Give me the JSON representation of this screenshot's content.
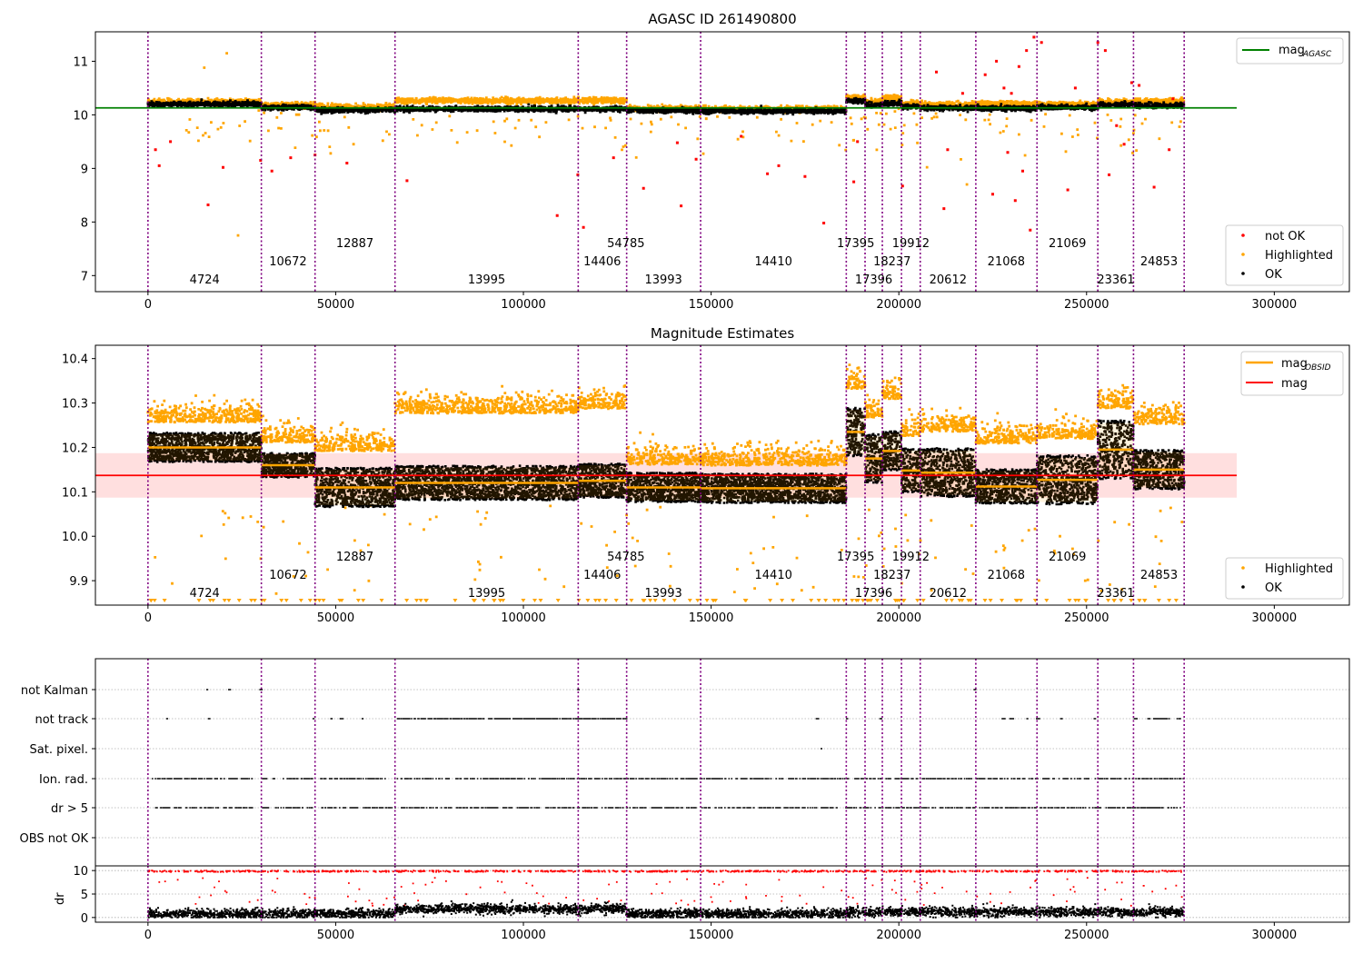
{
  "chart_data": [
    {
      "type": "scatter",
      "title": "AGASC ID 261490800",
      "xlim": [
        -14000,
        320000
      ],
      "ylim": [
        6.7,
        11.55
      ],
      "xticks": [
        0,
        50000,
        100000,
        150000,
        200000,
        250000,
        300000
      ],
      "yticks": [
        7,
        8,
        9,
        10,
        11
      ],
      "mag_agasc": 10.13,
      "agasc_line_xrange": [
        -14000,
        290000
      ],
      "obsid_boundaries": [
        0,
        30200,
        44500,
        65800,
        114600,
        127500,
        147200,
        186000,
        191000,
        195600,
        200700,
        205700,
        220500,
        236800,
        253000,
        262500,
        276000
      ],
      "obsid_labels": [
        {
          "label": "4724",
          "x": 15100,
          "row": 3
        },
        {
          "label": "10672",
          "x": 37300,
          "row": 2
        },
        {
          "label": "12887",
          "x": 55100,
          "row": 1
        },
        {
          "label": "13995",
          "x": 90200,
          "row": 3
        },
        {
          "label": "14406",
          "x": 121000,
          "row": 2
        },
        {
          "label": "54785",
          "x": 127300,
          "row": 1
        },
        {
          "label": "13993",
          "x": 137300,
          "row": 3
        },
        {
          "label": "14410",
          "x": 166600,
          "row": 2
        },
        {
          "label": "17395",
          "x": 188500,
          "row": 1
        },
        {
          "label": "17396",
          "x": 193300,
          "row": 3
        },
        {
          "label": "18237",
          "x": 198200,
          "row": 2
        },
        {
          "label": "19912",
          "x": 203200,
          "row": 1
        },
        {
          "label": "20612",
          "x": 213100,
          "row": 3
        },
        {
          "label": "21068",
          "x": 228600,
          "row": 2
        },
        {
          "label": "21069",
          "x": 244900,
          "row": 1
        },
        {
          "label": "23361",
          "x": 257800,
          "row": 3
        },
        {
          "label": "24853",
          "x": 269300,
          "row": 2
        }
      ],
      "segments_ok_mag": [
        10.21,
        10.15,
        10.1,
        10.12,
        10.12,
        10.09,
        10.08,
        10.27,
        10.19,
        10.22,
        10.17,
        10.14,
        10.13,
        10.15,
        10.2,
        10.18
      ],
      "segments_highlighted_offset": [
        0.05,
        0.05,
        0.08,
        0.24,
        0.25,
        0.04,
        0.04,
        0.09,
        0.08,
        0.15,
        0.06,
        0.08,
        0.12,
        0.08,
        0.06,
        0.12
      ],
      "not_ok_points": [
        [
          2000,
          9.35
        ],
        [
          3000,
          9.05
        ],
        [
          6000,
          9.5
        ],
        [
          16000,
          8.32
        ],
        [
          20000,
          9.02
        ],
        [
          30000,
          9.15
        ],
        [
          33000,
          8.95
        ],
        [
          38000,
          9.2
        ],
        [
          44500,
          9.25
        ],
        [
          53000,
          9.1
        ],
        [
          69000,
          8.77
        ],
        [
          109000,
          8.12
        ],
        [
          114500,
          8.88
        ],
        [
          116000,
          7.9
        ],
        [
          124000,
          9.2
        ],
        [
          132000,
          8.63
        ],
        [
          141000,
          9.48
        ],
        [
          142000,
          8.3
        ],
        [
          146000,
          9.17
        ],
        [
          158000,
          9.6
        ],
        [
          165000,
          8.9
        ],
        [
          168000,
          9.05
        ],
        [
          175000,
          8.85
        ],
        [
          180000,
          7.98
        ],
        [
          188000,
          8.75
        ],
        [
          189000,
          9.5
        ],
        [
          201000,
          8.67
        ],
        [
          210000,
          10.8
        ],
        [
          212000,
          8.25
        ],
        [
          213000,
          9.35
        ],
        [
          217000,
          10.4
        ],
        [
          223000,
          10.75
        ],
        [
          225000,
          8.52
        ],
        [
          226000,
          11.0
        ],
        [
          228000,
          10.5
        ],
        [
          229000,
          9.3
        ],
        [
          230000,
          10.4
        ],
        [
          231000,
          8.4
        ],
        [
          232000,
          10.9
        ],
        [
          233000,
          8.95
        ],
        [
          234000,
          11.2
        ],
        [
          235000,
          7.85
        ],
        [
          236000,
          11.45
        ],
        [
          238000,
          11.35
        ],
        [
          245000,
          8.6
        ],
        [
          247000,
          10.5
        ],
        [
          253000,
          11.35
        ],
        [
          255000,
          11.2
        ],
        [
          256000,
          8.88
        ],
        [
          258000,
          9.8
        ],
        [
          260000,
          9.45
        ],
        [
          262000,
          10.6
        ],
        [
          264000,
          10.55
        ],
        [
          268000,
          8.65
        ],
        [
          272000,
          9.35
        ],
        [
          273000,
          10.3
        ]
      ],
      "legend_line": [
        {
          "name": "mag",
          "sub": "AGASC"
        }
      ],
      "legend_points": [
        "not OK",
        "Highlighted",
        "OK"
      ]
    },
    {
      "type": "scatter",
      "title": "Magnitude Estimates",
      "xlim": [
        -14000,
        320000
      ],
      "ylim": [
        9.845,
        10.43
      ],
      "xticks": [
        0,
        50000,
        100000,
        150000,
        200000,
        250000,
        300000
      ],
      "yticks": [
        9.9,
        10.0,
        10.1,
        10.2,
        10.3,
        10.4
      ],
      "mag": 10.137,
      "mag_band": [
        10.087,
        10.187
      ],
      "mag_line_xrange": [
        -14000,
        290000
      ],
      "obsid_mag": [
        10.2,
        10.16,
        10.11,
        10.12,
        10.125,
        10.11,
        10.108,
        10.235,
        10.175,
        10.192,
        10.148,
        10.143,
        10.112,
        10.127,
        10.195,
        10.15
      ],
      "obsid_std": [
        0.03,
        0.025,
        0.04,
        0.035,
        0.035,
        0.03,
        0.03,
        0.05,
        0.05,
        0.04,
        0.045,
        0.05,
        0.035,
        0.05,
        0.06,
        0.04
      ],
      "legend_line": [
        {
          "name": "mag",
          "sub": "OBSID"
        },
        {
          "name": "mag",
          "sub": ""
        }
      ],
      "legend_points": [
        "Highlighted",
        "OK"
      ]
    },
    {
      "type": "scatter",
      "title": "",
      "xlim": [
        -14000,
        320000
      ],
      "categories": [
        "not Kalman",
        "not track",
        "Sat. pixel.",
        "Ion. rad.",
        "dr > 5",
        "OBS not OK"
      ],
      "dr_yticks": [
        0,
        5,
        10
      ],
      "dr_ylabel": "dr",
      "dr_ylim": [
        -1,
        11
      ]
    }
  ],
  "colors": {
    "ok": "#000000",
    "highlighted": "#ffa500",
    "not_ok": "#ff0000",
    "agasc_line": "#008000",
    "mag_line": "#ff0000",
    "obsid_line": "#ffa500",
    "boundary": "#800080"
  }
}
